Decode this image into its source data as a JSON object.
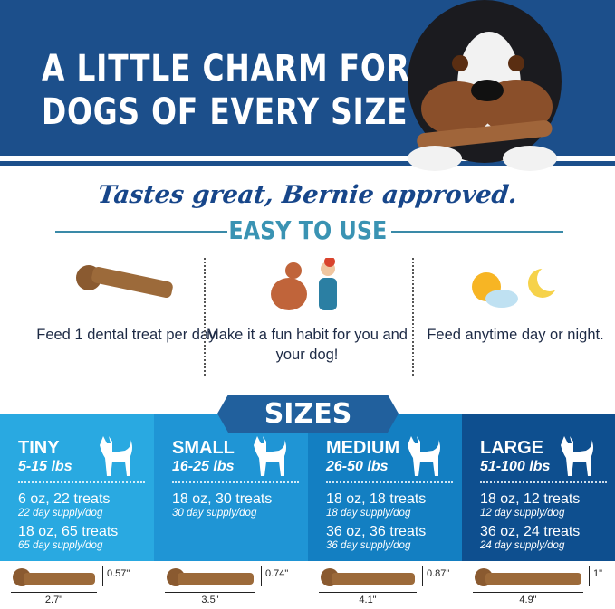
{
  "header": {
    "line1": "A LITTLE CHARM FOR",
    "line2": "DOGS OF EVERY SIZE"
  },
  "tagline": "Tastes great, Bernie approved.",
  "easy": {
    "title": "EASY TO USE",
    "items": [
      {
        "icon": "dental-treat-icon",
        "text": "Feed 1 dental treat per day."
      },
      {
        "icon": "dog-high-five-icon",
        "text": "Make it a fun habit for you and your dog!"
      },
      {
        "icon": "sun-moon-icon",
        "text": "Feed anytime day or night."
      }
    ]
  },
  "sizes": {
    "title": "SIZES",
    "columns": [
      {
        "name": "TINY",
        "lbs": "5-15 lbs",
        "color": "#29a9e1",
        "packs": [
          {
            "pack": "6 oz, 22 treats",
            "supply": "22 day supply/dog"
          },
          {
            "pack": "18 oz, 65 treats",
            "supply": "65 day supply/dog"
          }
        ],
        "height": "0.57\"",
        "length": "2.7\""
      },
      {
        "name": "SMALL",
        "lbs": "16-25 lbs",
        "color": "#1f95d5",
        "packs": [
          {
            "pack": "18 oz, 30 treats",
            "supply": "30 day supply/dog"
          }
        ],
        "height": "0.74\"",
        "length": "3.5\""
      },
      {
        "name": "MEDIUM",
        "lbs": "26-50 lbs",
        "color": "#137fc2",
        "packs": [
          {
            "pack": "18 oz, 18 treats",
            "supply": "18 day supply/dog"
          },
          {
            "pack": "36 oz, 36 treats",
            "supply": "36 day supply/dog"
          }
        ],
        "height": "0.87\"",
        "length": "4.1\""
      },
      {
        "name": "LARGE",
        "lbs": "51-100 lbs",
        "color": "#0e4f8f",
        "packs": [
          {
            "pack": "18 oz, 12 treats",
            "supply": "12 day supply/dog"
          },
          {
            "pack": "36 oz, 24 treats",
            "supply": "24 day supply/dog"
          }
        ],
        "height": "1\"",
        "length": "4.9\""
      }
    ]
  }
}
